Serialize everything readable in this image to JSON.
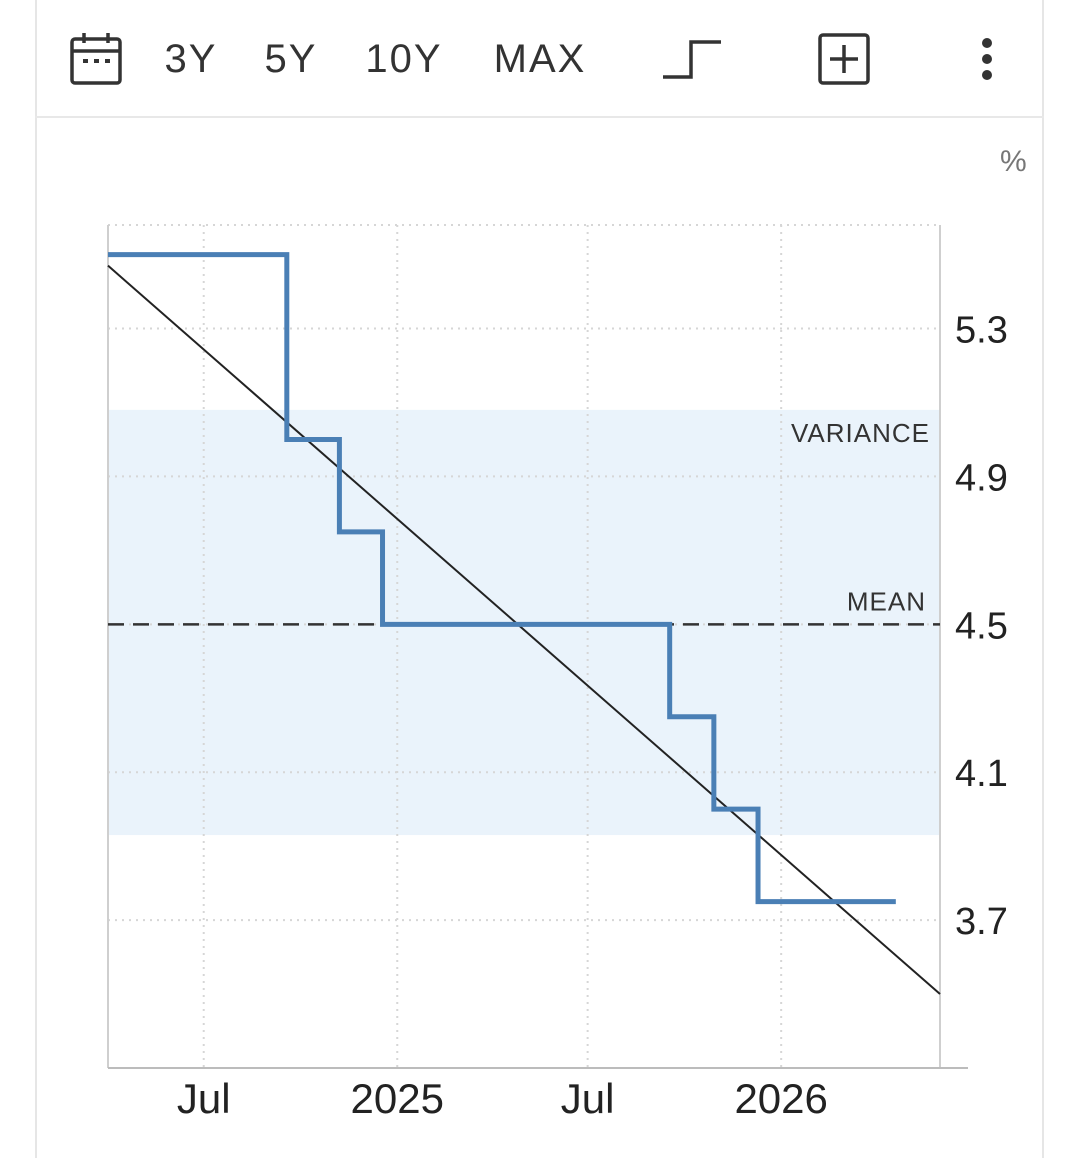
{
  "toolbar": {
    "calendar_icon": "calendar-icon",
    "ranges": [
      "3Y",
      "5Y",
      "10Y",
      "MAX"
    ],
    "chart_type_icon": "step-line-icon",
    "add_icon": "plus-box-icon",
    "more_icon": "more-vertical-icon"
  },
  "colors": {
    "series": "#4a7fb5",
    "variance_band": "#eaf3fb",
    "trend": "#222222",
    "mean": "#333333",
    "grid": "#d6d6d6"
  },
  "chart_data": {
    "type": "line",
    "step": true,
    "unit": "%",
    "xlim": [
      "2024-04-01",
      "2026-06-01"
    ],
    "ylim": [
      3.3,
      5.58
    ],
    "yticks": [
      "5.3",
      "4.9",
      "4.5",
      "4.1",
      "3.7"
    ],
    "xticks": [
      {
        "label": "Jul",
        "date": "2024-07-01"
      },
      {
        "label": "2025",
        "date": "2025-01-01"
      },
      {
        "label": "Jul",
        "date": "2025-07-01"
      },
      {
        "label": "2026",
        "date": "2026-01-01"
      }
    ],
    "series": [
      {
        "points": [
          {
            "x": "2024-04-01",
            "y": 5.5
          },
          {
            "x": "2024-09-18",
            "y": 5.0
          },
          {
            "x": "2024-11-07",
            "y": 4.75
          },
          {
            "x": "2024-12-18",
            "y": 4.5
          },
          {
            "x": "2025-09-17",
            "y": 4.25
          },
          {
            "x": "2025-10-29",
            "y": 4.0
          },
          {
            "x": "2025-12-10",
            "y": 3.75
          },
          {
            "x": "2026-04-20",
            "y": 3.75
          }
        ]
      }
    ],
    "trend": {
      "start": {
        "x": "2024-04-01",
        "y": 5.47
      },
      "end": {
        "x": "2026-06-01",
        "y": 3.5
      }
    },
    "mean": {
      "label": "MEAN",
      "value": 4.5
    },
    "variance": {
      "label": "VARIANCE",
      "low": 3.93,
      "high": 5.08
    },
    "grid": true
  }
}
